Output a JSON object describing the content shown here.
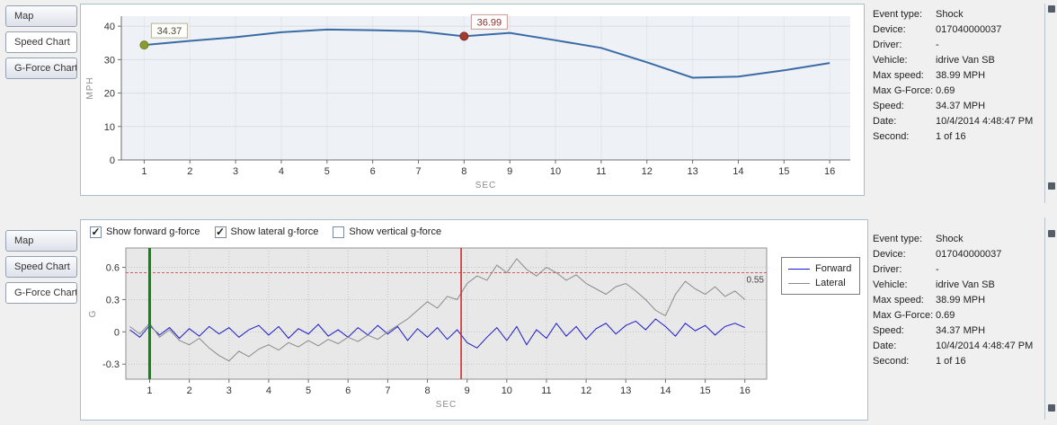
{
  "tabs": [
    "Map",
    "Speed Chart",
    "G-Force Chart"
  ],
  "top_panel": {
    "selected_tab": 1
  },
  "bottom_panel": {
    "selected_tab": 2,
    "checkboxes": [
      {
        "label": "Show forward g-force",
        "checked": true
      },
      {
        "label": "Show lateral g-force",
        "checked": true
      },
      {
        "label": "Show vertical g-force",
        "checked": false
      }
    ],
    "legend": [
      {
        "name": "Forward",
        "color": "#1a1acd"
      },
      {
        "name": "Lateral",
        "color": "#8a8a8a"
      }
    ]
  },
  "event_info": {
    "rows": [
      {
        "label": "Event type:",
        "value": "Shock"
      },
      {
        "label": "Device:",
        "value": "017040000037"
      },
      {
        "label": "Driver:",
        "value": "-"
      },
      {
        "label": "Vehicle:",
        "value": "idrive Van SB"
      },
      {
        "label": "Max speed:",
        "value": "38.99 MPH"
      },
      {
        "label": "Max G-Force:",
        "value": "0.69"
      },
      {
        "label": "Speed:",
        "value": "34.37 MPH"
      },
      {
        "label": "Date:",
        "value": "10/4/2014 4:48:47 PM"
      },
      {
        "label": "Second:",
        "value": "1 of 16"
      }
    ]
  },
  "chart_data": [
    {
      "type": "line",
      "xlabel": "SEC",
      "ylabel": "MPH",
      "xlim": [
        0.5,
        16.45
      ],
      "ylim": [
        0,
        43
      ],
      "xticks": [
        1,
        2,
        3,
        4,
        5,
        6,
        7,
        8,
        9,
        10,
        11,
        12,
        13,
        14,
        15,
        16
      ],
      "yticks": [
        0,
        10,
        20,
        30,
        40
      ],
      "x": [
        1,
        2,
        3,
        4,
        5,
        6,
        7,
        8,
        9,
        10,
        11,
        12,
        13,
        14,
        15,
        16
      ],
      "series": [
        {
          "name": "Speed",
          "color": "#3b6ba5",
          "width": 2,
          "values": [
            34.37,
            35.6,
            36.7,
            38.2,
            38.99,
            38.8,
            38.5,
            36.99,
            38.0,
            35.8,
            33.5,
            29.2,
            24.6,
            24.9,
            26.8,
            29.0
          ]
        }
      ],
      "markers": [
        {
          "x": 1,
          "y": 34.37,
          "label": "34.37",
          "color": "#8a9b31",
          "edge": "#6e7f27",
          "box_border": "#b4b49a",
          "text_color": "#4c4c38"
        },
        {
          "x": 8,
          "y": 36.99,
          "label": "36.99",
          "color": "#a03c34",
          "edge": "#7d2a24",
          "box_border": "#c79a94",
          "text_color": "#8b2e2e"
        }
      ]
    },
    {
      "type": "line",
      "xlabel": "SEC",
      "ylabel": "G",
      "xlim": [
        0.4,
        16.55
      ],
      "ylim": [
        -0.44,
        0.78
      ],
      "xticks": [
        1,
        2,
        3,
        4,
        5,
        6,
        7,
        8,
        9,
        10,
        11,
        12,
        13,
        14,
        15,
        16
      ],
      "yticks": [
        -0.3,
        0,
        0.3,
        0.6
      ],
      "x_start": 0.5,
      "x_step": 0.25,
      "series": [
        {
          "name": "Forward",
          "color": "#1a1acd",
          "width": 1,
          "values": [
            0.02,
            -0.05,
            0.06,
            -0.03,
            0.04,
            -0.06,
            0.03,
            -0.04,
            0.05,
            -0.02,
            0.04,
            -0.05,
            0.02,
            0.06,
            -0.03,
            0.05,
            -0.06,
            0.03,
            -0.02,
            0.07,
            -0.04,
            0.02,
            -0.05,
            0.04,
            -0.03,
            0.06,
            -0.02,
            0.05,
            -0.08,
            0.03,
            -0.05,
            0.04,
            -0.07,
            0.02,
            -0.1,
            -0.15,
            -0.05,
            0.04,
            -0.08,
            0.05,
            -0.12,
            0.02,
            -0.06,
            0.08,
            -0.04,
            0.05,
            -0.07,
            0.03,
            0.08,
            -0.02,
            0.06,
            0.1,
            0.02,
            0.12,
            0.05,
            -0.04,
            0.08,
            0.01,
            0.06,
            -0.03,
            0.05,
            0.08,
            0.04
          ]
        },
        {
          "name": "Lateral",
          "color": "#8a8a8a",
          "width": 1,
          "values": [
            0.05,
            -0.02,
            0.08,
            -0.05,
            0.02,
            -0.08,
            -0.12,
            -0.06,
            -0.15,
            -0.22,
            -0.27,
            -0.18,
            -0.23,
            -0.16,
            -0.12,
            -0.17,
            -0.1,
            -0.14,
            -0.08,
            -0.13,
            -0.07,
            -0.11,
            -0.05,
            -0.09,
            -0.03,
            -0.07,
            0.0,
            0.06,
            0.12,
            0.2,
            0.28,
            0.22,
            0.33,
            0.3,
            0.45,
            0.52,
            0.48,
            0.62,
            0.55,
            0.68,
            0.58,
            0.52,
            0.6,
            0.55,
            0.48,
            0.53,
            0.45,
            0.4,
            0.35,
            0.42,
            0.45,
            0.38,
            0.3,
            0.2,
            0.15,
            0.35,
            0.47,
            0.4,
            0.35,
            0.42,
            0.33,
            0.38,
            0.3
          ]
        }
      ],
      "vlines": [
        {
          "x": 1,
          "color": "#0a8a0a",
          "width": 3,
          "name": "selected-second-line"
        },
        {
          "x": 8.85,
          "color": "#cc2222",
          "width": 1.5,
          "name": "event-time-line"
        }
      ],
      "hline": {
        "y": 0.55,
        "label": "0.55",
        "color": "#d06060"
      }
    }
  ]
}
